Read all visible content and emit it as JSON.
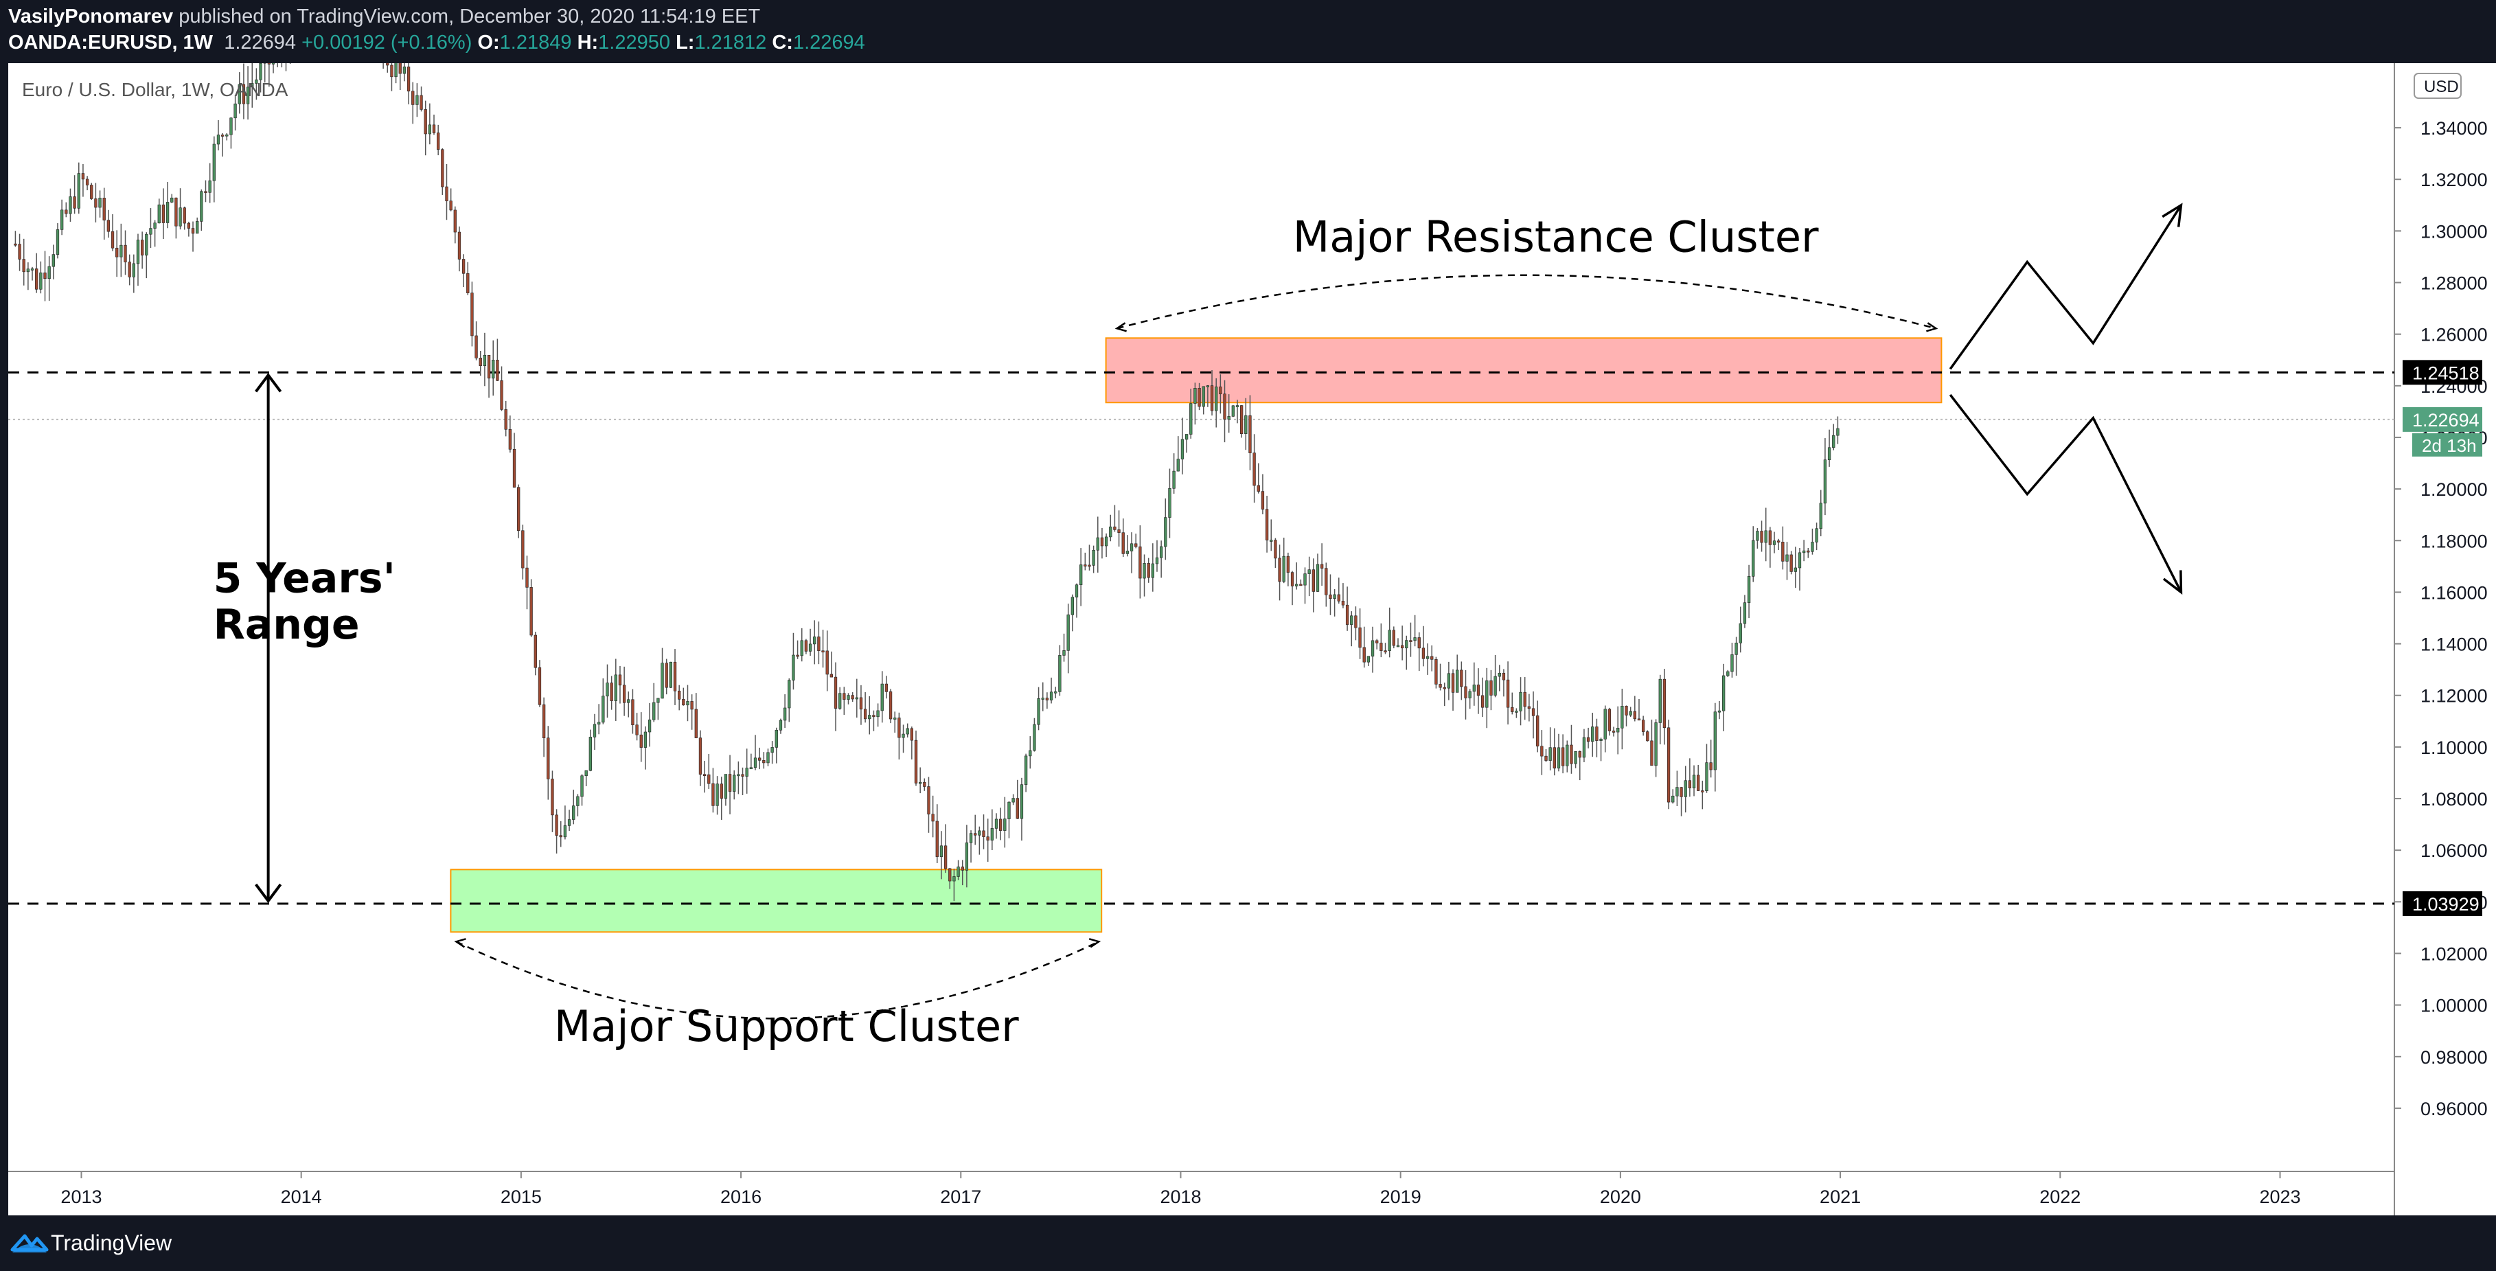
{
  "header": {
    "author": "VasilyPonomarev",
    "published": "published on TradingView.com, December 30, 2020 11:54:19 EET",
    "symbol": "OANDA:EURUSD, 1W",
    "last": "1.22694",
    "change": "+0.00192 (+0.16%)",
    "o_label": "O:",
    "o": "1.21849",
    "h_label": "H:",
    "h": "1.22950",
    "l_label": "L:",
    "l": "1.21812",
    "c_label": "C:",
    "c": "1.22694"
  },
  "footer": {
    "brand": "TradingView"
  },
  "chart_data": {
    "type": "candlestick",
    "title": "Euro / U.S. Dollar, 1W, OANDA",
    "currency": "USD",
    "xlim": [
      2012.68,
      2023.52
    ],
    "ylim": [
      0.9355,
      1.3637
    ],
    "y_ticks": [
      "1.34000",
      "1.32000",
      "1.30000",
      "1.28000",
      "1.26000",
      "1.24000",
      "1.22000",
      "1.20000",
      "1.18000",
      "1.16000",
      "1.14000",
      "1.12000",
      "1.10000",
      "1.08000",
      "1.06000",
      "1.04000",
      "1.02000",
      "1.00000",
      "0.98000",
      "0.96000"
    ],
    "x_ticks": [
      "2013",
      "2014",
      "2015",
      "2016",
      "2017",
      "2018",
      "2019",
      "2020",
      "2021",
      "2022",
      "2023"
    ],
    "price_path": [
      [
        2012.7,
        1.295
      ],
      [
        2012.8,
        1.28
      ],
      [
        2012.9,
        1.3
      ],
      [
        2013.0,
        1.32
      ],
      [
        2013.1,
        1.305
      ],
      [
        2013.2,
        1.285
      ],
      [
        2013.3,
        1.3
      ],
      [
        2013.4,
        1.31
      ],
      [
        2013.5,
        1.3
      ],
      [
        2013.6,
        1.33
      ],
      [
        2013.7,
        1.35
      ],
      [
        2013.8,
        1.36
      ],
      [
        2013.9,
        1.37
      ],
      [
        2014.0,
        1.375
      ],
      [
        2014.1,
        1.38
      ],
      [
        2014.2,
        1.385
      ],
      [
        2014.3,
        1.39
      ],
      [
        2014.4,
        1.365
      ],
      [
        2014.5,
        1.355
      ],
      [
        2014.6,
        1.335
      ],
      [
        2014.7,
        1.3
      ],
      [
        2014.8,
        1.255
      ],
      [
        2014.9,
        1.24
      ],
      [
        2015.0,
        1.18
      ],
      [
        2015.08,
        1.125
      ],
      [
        2015.15,
        1.065
      ],
      [
        2015.25,
        1.075
      ],
      [
        2015.35,
        1.115
      ],
      [
        2015.45,
        1.125
      ],
      [
        2015.55,
        1.105
      ],
      [
        2015.65,
        1.13
      ],
      [
        2015.75,
        1.12
      ],
      [
        2015.85,
        1.08
      ],
      [
        2015.95,
        1.085
      ],
      [
        2016.05,
        1.09
      ],
      [
        2016.15,
        1.105
      ],
      [
        2016.25,
        1.135
      ],
      [
        2016.35,
        1.14
      ],
      [
        2016.45,
        1.115
      ],
      [
        2016.55,
        1.115
      ],
      [
        2016.65,
        1.12
      ],
      [
        2016.75,
        1.105
      ],
      [
        2016.85,
        1.075
      ],
      [
        2016.95,
        1.045
      ],
      [
        2017.05,
        1.065
      ],
      [
        2017.15,
        1.07
      ],
      [
        2017.25,
        1.075
      ],
      [
        2017.35,
        1.115
      ],
      [
        2017.45,
        1.13
      ],
      [
        2017.55,
        1.17
      ],
      [
        2017.65,
        1.185
      ],
      [
        2017.75,
        1.18
      ],
      [
        2017.85,
        1.165
      ],
      [
        2017.95,
        1.195
      ],
      [
        2018.02,
        1.225
      ],
      [
        2018.1,
        1.24
      ],
      [
        2018.2,
        1.23
      ],
      [
        2018.3,
        1.225
      ],
      [
        2018.35,
        1.195
      ],
      [
        2018.45,
        1.17
      ],
      [
        2018.55,
        1.165
      ],
      [
        2018.65,
        1.165
      ],
      [
        2018.75,
        1.15
      ],
      [
        2018.85,
        1.135
      ],
      [
        2018.95,
        1.145
      ],
      [
        2019.05,
        1.14
      ],
      [
        2019.15,
        1.13
      ],
      [
        2019.25,
        1.125
      ],
      [
        2019.35,
        1.12
      ],
      [
        2019.45,
        1.125
      ],
      [
        2019.55,
        1.115
      ],
      [
        2019.65,
        1.1
      ],
      [
        2019.75,
        1.095
      ],
      [
        2019.85,
        1.105
      ],
      [
        2019.95,
        1.11
      ],
      [
        2020.05,
        1.11
      ],
      [
        2020.15,
        1.095
      ],
      [
        2020.18,
        1.13
      ],
      [
        2020.22,
        1.08
      ],
      [
        2020.3,
        1.085
      ],
      [
        2020.4,
        1.09
      ],
      [
        2020.45,
        1.12
      ],
      [
        2020.55,
        1.15
      ],
      [
        2020.6,
        1.18
      ],
      [
        2020.7,
        1.18
      ],
      [
        2020.8,
        1.17
      ],
      [
        2020.88,
        1.18
      ],
      [
        2020.95,
        1.215
      ],
      [
        2021.0,
        1.2269
      ]
    ],
    "price_labels": [
      {
        "text": "1.24518",
        "value": 1.24518,
        "bg": "#000000",
        "fg": "#ffffff"
      },
      {
        "text": "1.22694",
        "value": 1.22694,
        "bg": "#53a27f",
        "fg": "#ffffff"
      },
      {
        "text": "1.03929",
        "value": 1.03929,
        "bg": "#000000",
        "fg": "#ffffff"
      }
    ],
    "countdown": "2d 13h",
    "horizontal_lines": [
      {
        "value": 1.24518,
        "style": "dashed",
        "color": "#000000"
      },
      {
        "value": 1.03929,
        "style": "dashed",
        "color": "#000000"
      },
      {
        "value": 1.22694,
        "style": "dotted",
        "color": "#bbbbbb"
      }
    ],
    "zones": [
      {
        "name": "Major Resistance Cluster",
        "x0": 2017.66,
        "x1": 2021.46,
        "y0": 1.2585,
        "y1": 1.2335,
        "fill": "#ffb3b3",
        "stroke": "#ff9800"
      },
      {
        "name": "Major Support Cluster",
        "x0": 2014.68,
        "x1": 2017.64,
        "y0": 1.0525,
        "y1": 1.0283,
        "fill": "#b3ffb3",
        "stroke": "#ff9800"
      }
    ],
    "annotations": [
      {
        "text": "Major Resistance Cluster",
        "x": 2018.51,
        "y": 1.292
      },
      {
        "text": "Major Support Cluster",
        "x": 2015.15,
        "y": 0.986
      },
      {
        "text": "5 Years'",
        "x": 2013.6,
        "y": 1.16
      },
      {
        "text": "Range",
        "x": 2013.6,
        "y": 1.142
      }
    ],
    "range_arrow": {
      "x": 2013.85,
      "y0": 1.24518,
      "y1": 1.03929
    },
    "projections": [
      [
        [
          2021.5,
          1.2465
        ],
        [
          2021.85,
          1.288
        ],
        [
          2022.15,
          1.2565
        ],
        [
          2022.55,
          1.31
        ]
      ],
      [
        [
          2021.5,
          1.2365
        ],
        [
          2021.85,
          1.198
        ],
        [
          2022.15,
          1.2275
        ],
        [
          2022.55,
          1.16
        ]
      ]
    ],
    "grid": false,
    "colors": {
      "up": "#4c8f5e",
      "down": "#9e4a33",
      "background": "#ffffff"
    }
  }
}
